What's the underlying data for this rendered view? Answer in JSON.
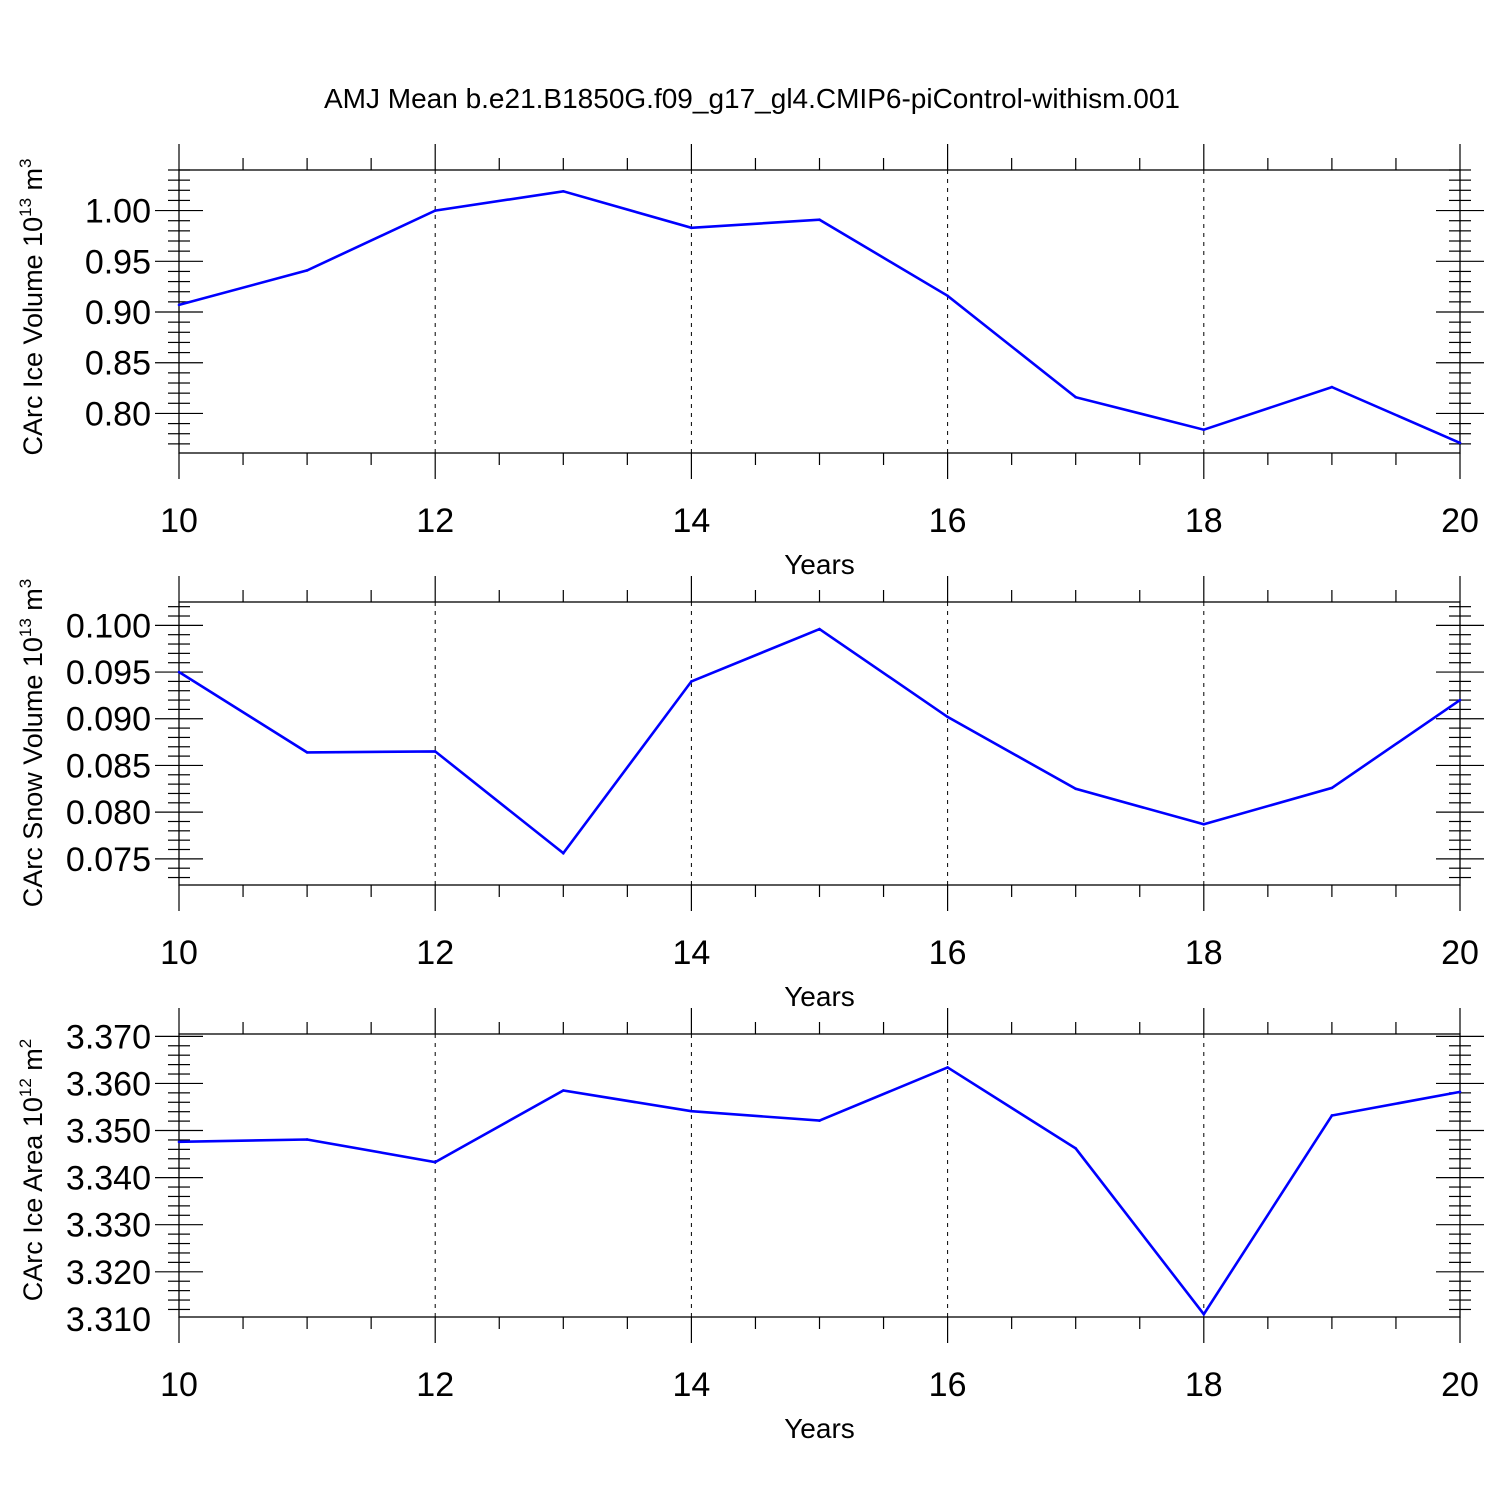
{
  "figure": {
    "title": "AMJ Mean b.e21.B1850G.f09_g17_gl4.CMIP6-piControl-withism.001",
    "line_color": "#0000ff"
  },
  "chart_data": [
    {
      "type": "line",
      "xlabel": "Years",
      "ylabel_main": "CArc Ice Volume 10",
      "ylabel_exp": "13",
      "ylabel_unit": "m",
      "ylabel_unit_exp": "3",
      "xlim": [
        10,
        20
      ],
      "ylim": [
        0.761,
        1.04
      ],
      "xticks": [
        10,
        12,
        14,
        16,
        18,
        20
      ],
      "xtick_labels": [
        "10",
        "12",
        "14",
        "16",
        "18",
        "20"
      ],
      "yticks": [
        0.8,
        0.85,
        0.9,
        0.95,
        1.0
      ],
      "ytick_labels": [
        "0.80",
        "0.85",
        "0.90",
        "0.95",
        "1.00"
      ],
      "grid": "dashed vertical lines at labeled x ticks",
      "x": [
        10,
        11,
        12,
        13,
        14,
        15,
        16,
        17,
        18,
        19,
        20
      ],
      "values": [
        0.907,
        0.941,
        1.0,
        1.019,
        0.983,
        0.991,
        0.916,
        0.816,
        0.784,
        0.826,
        0.771
      ]
    },
    {
      "type": "line",
      "xlabel": "Years",
      "ylabel_main": "CArc Snow Volume 10",
      "ylabel_exp": "13",
      "ylabel_unit": "m",
      "ylabel_unit_exp": "3",
      "xlim": [
        10,
        20
      ],
      "ylim": [
        0.0722,
        0.1025
      ],
      "xticks": [
        10,
        12,
        14,
        16,
        18,
        20
      ],
      "xtick_labels": [
        "10",
        "12",
        "14",
        "16",
        "18",
        "20"
      ],
      "yticks": [
        0.075,
        0.08,
        0.085,
        0.09,
        0.095,
        0.1
      ],
      "ytick_labels": [
        "0.075",
        "0.080",
        "0.085",
        "0.090",
        "0.095",
        "0.100"
      ],
      "grid": "dashed vertical lines at labeled x ticks",
      "x": [
        10,
        11,
        12,
        13,
        14,
        15,
        16,
        17,
        18,
        19,
        20
      ],
      "values": [
        0.095,
        0.0864,
        0.0865,
        0.0756,
        0.094,
        0.0996,
        0.0902,
        0.0825,
        0.0787,
        0.0826,
        0.092
      ]
    },
    {
      "type": "line",
      "xlabel": "Years",
      "ylabel_main": "CArc Ice Area 10",
      "ylabel_exp": "12",
      "ylabel_unit": "m",
      "ylabel_unit_exp": "2",
      "xlim": [
        10,
        20
      ],
      "ylim": [
        3.3104,
        3.3705
      ],
      "xticks": [
        10,
        12,
        14,
        16,
        18,
        20
      ],
      "xtick_labels": [
        "10",
        "12",
        "14",
        "16",
        "18",
        "20"
      ],
      "yticks": [
        3.31,
        3.32,
        3.33,
        3.34,
        3.35,
        3.36,
        3.37
      ],
      "ytick_labels": [
        "3.310",
        "3.320",
        "3.330",
        "3.340",
        "3.350",
        "3.360",
        "3.370"
      ],
      "grid": "dashed vertical lines at labeled x ticks",
      "x": [
        10,
        11,
        12,
        13,
        14,
        15,
        16,
        17,
        18,
        19,
        20
      ],
      "values": [
        3.3476,
        3.3481,
        3.3433,
        3.3585,
        3.3541,
        3.3521,
        3.3634,
        3.3462,
        3.311,
        3.3532,
        3.3582
      ]
    }
  ]
}
